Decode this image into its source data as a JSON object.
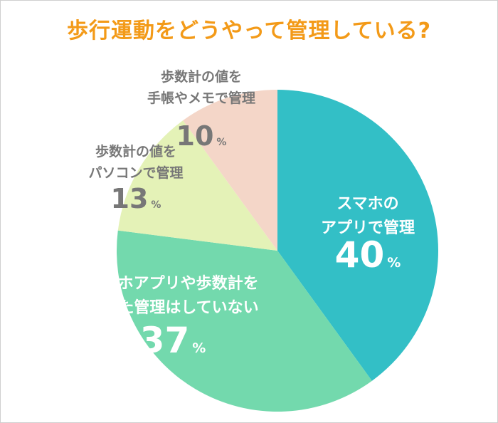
{
  "title": "歩行運動をどうやって管理している?",
  "chart_data": {
    "type": "pie",
    "slices": [
      {
        "label_lines": [
          "スマホの",
          "アプリで管理"
        ],
        "value": 40,
        "color": "#33bfc6",
        "label_color": "#ffffff"
      },
      {
        "label_lines": [
          "スマホアプリや歩数計を",
          "使った管理はしていない"
        ],
        "value": 37,
        "color": "#73d9ad",
        "label_color": "#ffffff"
      },
      {
        "label_lines": [
          "歩数計の値を",
          "パソコンで管理"
        ],
        "value": 13,
        "color": "#e4f2b7",
        "label_color": "#777777"
      },
      {
        "label_lines": [
          "歩数計の値を",
          "手帳やメモで管理"
        ],
        "value": 10,
        "color": "#f4d6c8",
        "label_color": "#777777"
      }
    ],
    "unit": "%"
  }
}
